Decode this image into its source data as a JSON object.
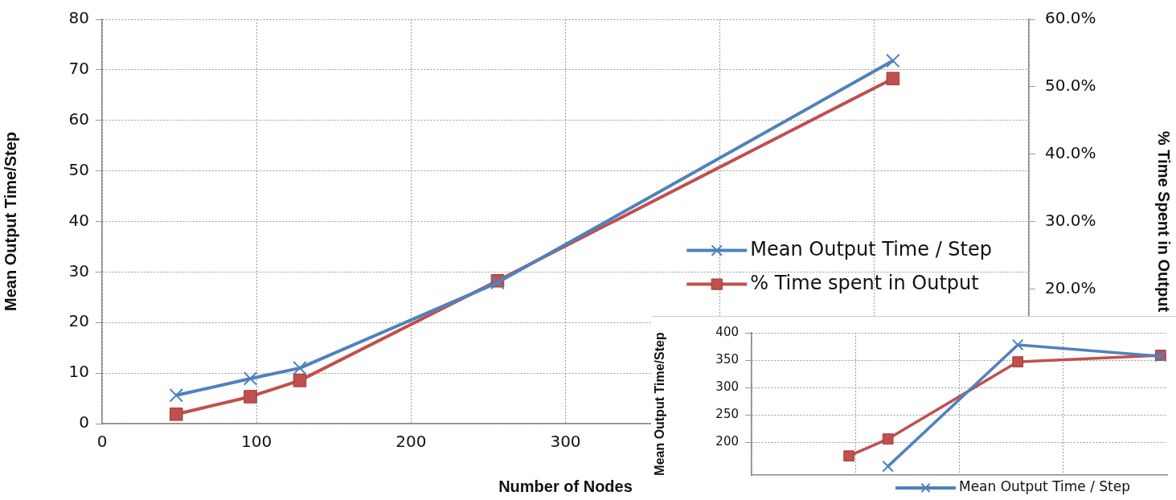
{
  "chart_data": [
    {
      "type": "line",
      "xlabel": "Number of Nodes",
      "ylabel": "Mean Output Time/Step",
      "y2label": "% Time Spent in Output",
      "xlim": [
        0,
        600
      ],
      "xticks": [
        0,
        100,
        200,
        300,
        {
          "value": 400,
          "label": null
        },
        {
          "value": 500,
          "label": null
        },
        {
          "value": 600,
          "label": null
        }
      ],
      "ylim": [
        0,
        80
      ],
      "yticks": [
        0,
        10,
        20,
        30,
        40,
        50,
        60,
        70,
        80
      ],
      "y2lim": [
        0,
        60
      ],
      "y2ticks": [
        {
          "value": 20,
          "label": "20.0%"
        },
        {
          "value": 30,
          "label": "30.0%"
        },
        {
          "value": 40,
          "label": "40.0%"
        },
        {
          "value": 50,
          "label": "50.0%"
        },
        {
          "value": 60,
          "label": "60.0%"
        }
      ],
      "grid": true,
      "legend": "right",
      "series": [
        {
          "name": "Mean Output Time / Step",
          "color": "#4f81bd",
          "marker": "cross",
          "x": [
            48,
            96,
            128,
            256,
            512
          ],
          "values": [
            5.6,
            8.9,
            11,
            27.9,
            71.8
          ]
        },
        {
          "name": "% Time spent in Output",
          "color": "#c0504d",
          "marker": "square",
          "axis": "y2",
          "x": [
            48,
            96,
            128,
            256,
            512
          ],
          "values": [
            1.4,
            4,
            6.4,
            21.2,
            51.2
          ]
        }
      ]
    },
    {
      "type": "line",
      "ylabel": "Mean Output Time/Step",
      "categories": [
        null,
        null,
        null,
        null,
        null,
        null,
        null,
        null,
        null,
        null,
        null,
        null,
        null,
        null,
        null,
        null,
        null,
        null,
        null,
        null,
        null,
        null,
        null,
        null,
        null,
        null,
        null,
        null,
        null,
        null,
        null,
        null
      ],
      "ylim": [
        140,
        400
      ],
      "yticks": [
        200,
        250,
        300,
        350,
        400
      ],
      "tick_labels": "y",
      "grid": true,
      "legend": "bottom right",
      "series": [
        {
          "name": "Mean Output Time / Step",
          "color": "#4f81bd",
          "marker": "cross",
          "values": [
            null,
            null,
            null,
            null,
            null,
            null,
            null,
            null,
            null,
            null,
            156,
            null,
            null,
            null,
            null,
            null,
            null,
            null,
            null,
            null,
            378,
            null,
            null,
            null,
            null,
            null,
            null,
            null,
            null,
            null,
            null,
            357
          ]
        },
        {
          "color": "#c0504d",
          "marker": "square",
          "values": [
            null,
            null,
            null,
            null,
            null,
            null,
            null,
            175,
            null,
            null,
            206,
            null,
            null,
            null,
            null,
            null,
            null,
            null,
            null,
            null,
            347,
            null,
            null,
            null,
            null,
            null,
            null,
            null,
            null,
            null,
            null,
            359
          ]
        }
      ]
    }
  ]
}
